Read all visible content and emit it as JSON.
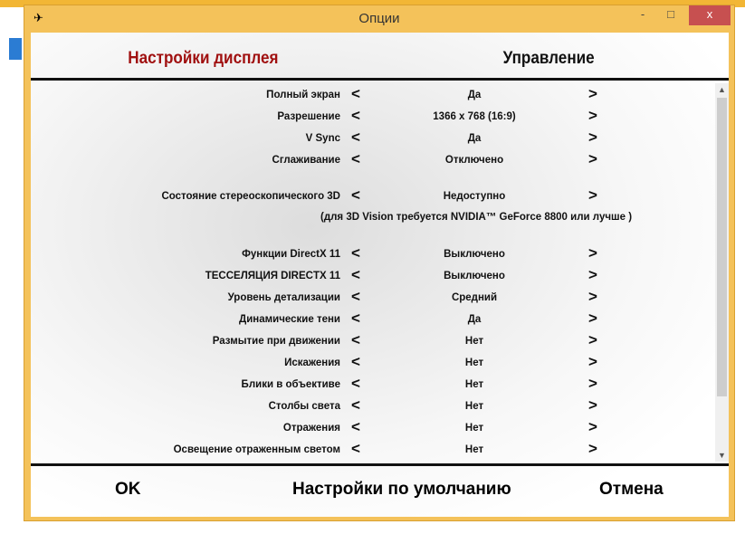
{
  "window": {
    "title": "Опции",
    "minimize": "-",
    "maximize": "□",
    "close": "x"
  },
  "tabs": [
    {
      "label": "Настройки дисплея",
      "active": true,
      "color": "#a01010"
    },
    {
      "label": "Управление",
      "active": false
    }
  ],
  "settings": [
    {
      "label": "Полный экран",
      "value": "Да"
    },
    {
      "label": "Разрешение",
      "value": "1366 x 768 (16:9)"
    },
    {
      "label": "V Sync",
      "value": "Да"
    },
    {
      "label": "Сглаживание",
      "value": "Отключено"
    },
    {
      "label": "Состояние стереоскопического 3D",
      "value": "Недоступно"
    },
    {
      "label": "Функции DirectX 11",
      "value": "Выключено"
    },
    {
      "label": "ТЕССЕЛЯЦИЯ DIRECTX 11",
      "value": "Выключено"
    },
    {
      "label": "Уровень детализации",
      "value": "Средний"
    },
    {
      "label": "Динамические тени",
      "value": "Да"
    },
    {
      "label": "Размытие при движении",
      "value": "Нет"
    },
    {
      "label": "Искажения",
      "value": "Нет"
    },
    {
      "label": "Блики в объективе",
      "value": "Нет"
    },
    {
      "label": "Столбы света",
      "value": "Нет"
    },
    {
      "label": "Отражения",
      "value": "Нет"
    },
    {
      "label": "Освещение отраженным светом",
      "value": "Нет"
    }
  ],
  "arrows": {
    "prev": "<",
    "next": ">"
  },
  "note": "(для 3D Vision требуется NVIDIA™ GeForce 8800 или лучше )",
  "buttons": {
    "ok": "OK",
    "defaults": "Настройки по умолчанию",
    "cancel": "Отмена"
  }
}
